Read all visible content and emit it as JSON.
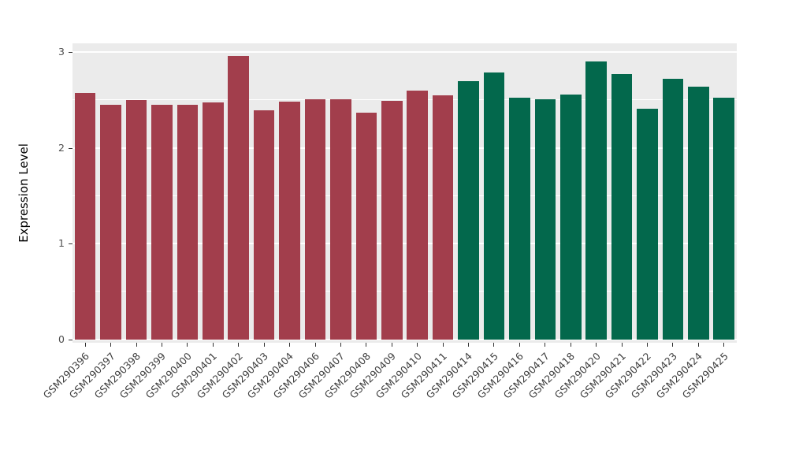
{
  "figure": {
    "background": "#FFFFFF",
    "panel_background": "#EBEBEB",
    "grid_color": "#FFFFFF",
    "axis_text_color": "#4D4D4D"
  },
  "chart_data": {
    "type": "bar",
    "title": "",
    "xlabel": "",
    "ylabel": "Expression Level",
    "ylim": [
      0,
      3
    ],
    "yticks": [
      0,
      1,
      2,
      3
    ],
    "ytick_labels": [
      "0",
      "1",
      "2",
      "3"
    ],
    "minor_yticks": [
      0.5,
      1.5,
      2.5
    ],
    "grid": true,
    "legend_position": "none",
    "categories": [
      "GSM290396",
      "GSM290397",
      "GSM290398",
      "GSM290399",
      "GSM290400",
      "GSM290401",
      "GSM290402",
      "GSM290403",
      "GSM290404",
      "GSM290406",
      "GSM290407",
      "GSM290408",
      "GSM290409",
      "GSM290410",
      "GSM290411",
      "GSM290414",
      "GSM290415",
      "GSM290416",
      "GSM290417",
      "GSM290418",
      "GSM290420",
      "GSM290421",
      "GSM290422",
      "GSM290423",
      "GSM290424",
      "GSM290425"
    ],
    "values": [
      2.57,
      2.45,
      2.5,
      2.45,
      2.45,
      2.47,
      2.96,
      2.39,
      2.48,
      2.51,
      2.51,
      2.37,
      2.49,
      2.6,
      2.55,
      2.7,
      2.79,
      2.52,
      2.51,
      2.56,
      2.9,
      2.77,
      2.41,
      2.72,
      2.64,
      2.52
    ],
    "group_of_bar": [
      0,
      0,
      0,
      0,
      0,
      0,
      0,
      0,
      0,
      0,
      0,
      0,
      0,
      0,
      0,
      1,
      1,
      1,
      1,
      1,
      1,
      1,
      1,
      1,
      1,
      1
    ],
    "group_colors": [
      "#A23E4C",
      "#03684C"
    ]
  }
}
